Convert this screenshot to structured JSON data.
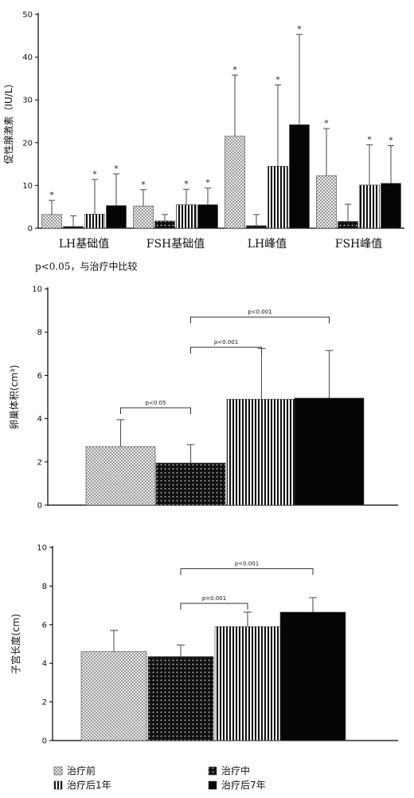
{
  "legend": {
    "series": [
      {
        "name": "治疗前",
        "pattern": "checker"
      },
      {
        "name": "治疗中",
        "pattern": "dots"
      },
      {
        "name": "治疗后1年",
        "pattern": "vstripes"
      },
      {
        "name": "治疗后7年",
        "pattern": "solid"
      }
    ]
  },
  "chart_data": [
    {
      "type": "bar",
      "ylabel": "促性腺激素（IU/L）",
      "ylim": [
        0,
        50
      ],
      "yticks": [
        0,
        10,
        20,
        30,
        40,
        50
      ],
      "categories": [
        "LH基础值",
        "FSH基础值",
        "LH峰值",
        "FSH峰值"
      ],
      "note": "p<0.05，与治疗中比较",
      "series": [
        {
          "name": "治疗前",
          "values": [
            3.2,
            5.2,
            21.5,
            12.3
          ],
          "errors": [
            3.3,
            3.8,
            14.3,
            11.0
          ],
          "star": [
            "*",
            "*",
            "*",
            "*"
          ]
        },
        {
          "name": "治疗中",
          "values": [
            0.4,
            1.7,
            0.6,
            1.6
          ],
          "errors": [
            2.5,
            1.5,
            2.6,
            4.0
          ],
          "star": [
            "",
            "",
            "",
            ""
          ]
        },
        {
          "name": "治疗后1年",
          "values": [
            3.3,
            5.5,
            14.5,
            10.1
          ],
          "errors": [
            8.1,
            3.6,
            19.0,
            9.4
          ],
          "star": [
            "*",
            "*",
            "*",
            "*"
          ]
        },
        {
          "name": "治疗后7年",
          "values": [
            5.3,
            5.5,
            24.2,
            10.5
          ],
          "errors": [
            7.4,
            3.9,
            21.1,
            8.8
          ],
          "star": [
            "*",
            "*",
            "*",
            "*"
          ]
        }
      ]
    },
    {
      "type": "bar",
      "ylabel": "卵巢体积(cm³)",
      "ylim": [
        0,
        10
      ],
      "yticks": [
        0,
        2,
        4,
        6,
        8,
        10
      ],
      "categories": [
        "治疗前",
        "治疗中",
        "治疗后1年",
        "治疗后7年"
      ],
      "values": [
        2.7,
        1.95,
        4.9,
        4.95
      ],
      "errors": [
        1.25,
        0.85,
        2.35,
        2.2
      ],
      "comparisons": [
        {
          "from": 0,
          "to": 1,
          "label": "p<0.05",
          "y": 4.5
        },
        {
          "from": 1,
          "to": 2,
          "label": "p<0.001",
          "y": 7.3
        },
        {
          "from": 1,
          "to": 3,
          "label": "p<0.001",
          "y": 8.7
        }
      ]
    },
    {
      "type": "bar",
      "ylabel": "子宫长度(cm)",
      "ylim": [
        0,
        10
      ],
      "yticks": [
        0,
        2,
        4,
        6,
        8,
        10
      ],
      "categories": [
        "治疗前",
        "治疗中",
        "治疗后1年",
        "治疗后7年"
      ],
      "values": [
        4.6,
        4.35,
        5.9,
        6.65
      ],
      "errors": [
        1.1,
        0.6,
        0.75,
        0.75
      ],
      "comparisons": [
        {
          "from": 1,
          "to": 2,
          "label": "p=0.001",
          "y": 7.1
        },
        {
          "from": 1,
          "to": 3,
          "label": "p<0.001",
          "y": 8.9
        }
      ]
    }
  ]
}
